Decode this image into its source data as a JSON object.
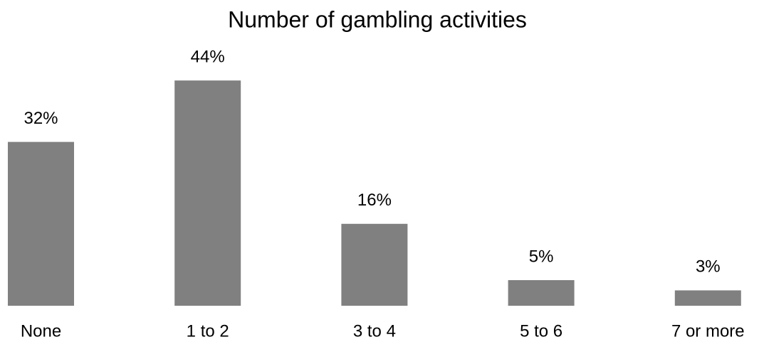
{
  "chart_data": {
    "type": "bar",
    "title": "Number of gambling activities",
    "categories": [
      "None",
      "1 to 2",
      "3 to 4",
      "5 to 6",
      "7 or more"
    ],
    "values": [
      32,
      44,
      16,
      5,
      3
    ],
    "value_labels": [
      "32%",
      "44%",
      "16%",
      "5%",
      "3%"
    ],
    "color": "#808080"
  }
}
